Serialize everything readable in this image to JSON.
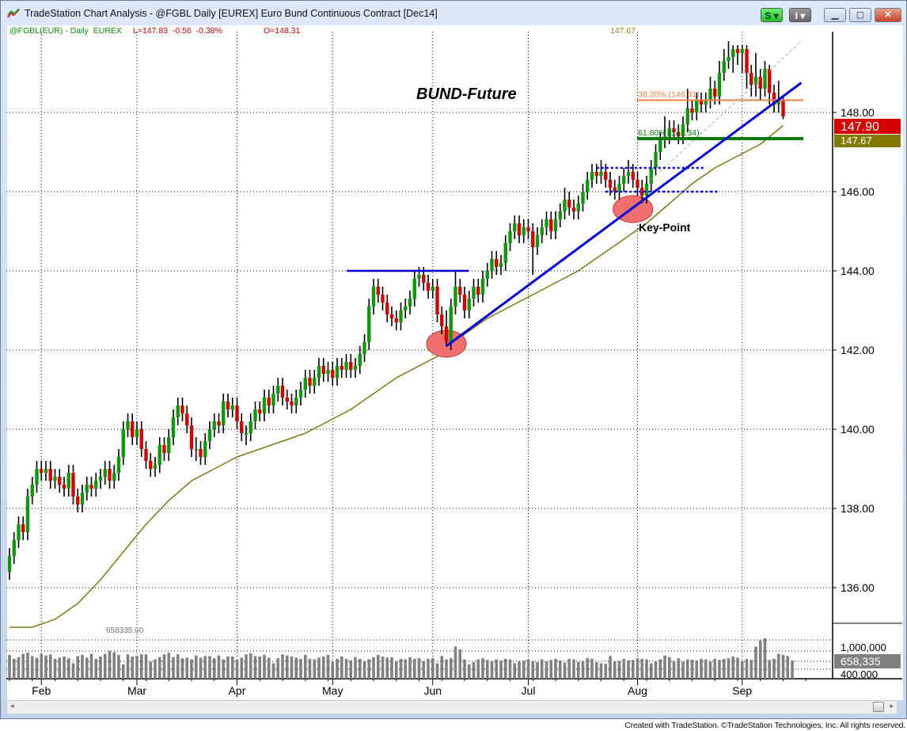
{
  "window": {
    "title": "TradeStation Chart Analysis - @FGBL Daily [EUREX] Euro Bund Continuous Contract [Dec14]",
    "buttons": {
      "s_label": "S ▾",
      "i_label": "I ▾",
      "minimize": "▁",
      "maximize": "▢",
      "close": "✕"
    }
  },
  "header": {
    "symbol": "@FGBL(EUR) - Daily  EUREX",
    "last": "L=147.83  -0.56  -0.38%",
    "open": "O=148.31",
    "ma_value": "147.67"
  },
  "colors": {
    "up": "#0a9a0a",
    "down": "#d40000",
    "ma": "#7f7a10",
    "trend": "#0000e0",
    "fib38": "#f08040",
    "fib62": "#0a7a0a",
    "ellipse": "#f07070"
  },
  "footer": "Created with TradeStation. ©TradeStation Technologies, Inc. All rights reserved.",
  "chart_data": {
    "type": "candlestick",
    "title": "BUND-Future",
    "annotation": "Key-Point",
    "yticks": [
      "136.00",
      "138.00",
      "140.00",
      "142.00",
      "144.00",
      "146.00",
      "148.00"
    ],
    "ylim": [
      134.8,
      150.2
    ],
    "x_ticks": [
      {
        "label": "Feb",
        "bar": 7
      },
      {
        "label": "Mar",
        "bar": 28
      },
      {
        "label": "Apr",
        "bar": 50
      },
      {
        "label": "May",
        "bar": 71
      },
      {
        "label": "Jun",
        "bar": 93
      },
      {
        "label": "Jul",
        "bar": 114
      },
      {
        "label": "Aug",
        "bar": 138
      },
      {
        "label": "Sep",
        "bar": 161
      }
    ],
    "last_price_label": "147.90",
    "ma_label": "147.67",
    "fib": [
      {
        "label": "38.20% (148.31)",
        "value": 148.31
      },
      {
        "label": "61.80% (147.34)",
        "value": 147.34
      }
    ],
    "resistance_line": {
      "value": 144.0,
      "from_bar": 75,
      "to_bar": 100
    },
    "trendline": {
      "from": [
        96,
        142.1
      ],
      "to": [
        174,
        148.75
      ]
    },
    "dotted_levels": [
      {
        "value": 146.6,
        "from_bar": 129,
        "to_bar": 153
      },
      {
        "value": 146.0,
        "from_bar": 131,
        "to_bar": 156
      }
    ],
    "dashed_channel": {
      "from": [
        141,
        146.3
      ],
      "to": [
        174,
        149.8
      ]
    },
    "key_points": [
      [
        96,
        142.2
      ],
      [
        137,
        145.6
      ]
    ],
    "moving_average": [
      [
        0,
        135.0
      ],
      [
        5,
        135.0
      ],
      [
        10,
        135.2
      ],
      [
        15,
        135.6
      ],
      [
        20,
        136.2
      ],
      [
        25,
        136.9
      ],
      [
        30,
        137.6
      ],
      [
        35,
        138.2
      ],
      [
        40,
        138.7
      ],
      [
        45,
        139.0
      ],
      [
        50,
        139.3
      ],
      [
        55,
        139.5
      ],
      [
        60,
        139.7
      ],
      [
        65,
        139.9
      ],
      [
        70,
        140.2
      ],
      [
        75,
        140.5
      ],
      [
        80,
        140.9
      ],
      [
        85,
        141.3
      ],
      [
        90,
        141.6
      ],
      [
        95,
        141.9
      ],
      [
        100,
        142.4
      ],
      [
        105,
        142.8
      ],
      [
        110,
        143.1
      ],
      [
        115,
        143.4
      ],
      [
        120,
        143.7
      ],
      [
        125,
        144.0
      ],
      [
        130,
        144.4
      ],
      [
        135,
        144.8
      ],
      [
        140,
        145.2
      ],
      [
        145,
        145.7
      ],
      [
        150,
        146.2
      ],
      [
        155,
        146.6
      ],
      [
        160,
        146.9
      ],
      [
        165,
        147.2
      ],
      [
        170,
        147.67
      ]
    ],
    "candles": [
      [
        136.4,
        137.0,
        136.2,
        136.8
      ],
      [
        136.8,
        137.4,
        136.6,
        137.2
      ],
      [
        137.2,
        137.8,
        137.0,
        137.6
      ],
      [
        137.6,
        137.8,
        137.2,
        137.4
      ],
      [
        137.4,
        138.5,
        137.2,
        138.3
      ],
      [
        138.3,
        138.8,
        138.1,
        138.6
      ],
      [
        138.6,
        139.2,
        138.4,
        139.0
      ],
      [
        139.0,
        139.2,
        138.7,
        138.9
      ],
      [
        138.9,
        139.2,
        138.7,
        139.0
      ],
      [
        139.0,
        139.2,
        138.5,
        138.7
      ],
      [
        138.7,
        139.0,
        138.5,
        138.8
      ],
      [
        138.8,
        139.0,
        138.4,
        138.6
      ],
      [
        138.6,
        138.8,
        138.3,
        138.5
      ],
      [
        138.5,
        139.1,
        138.3,
        138.9
      ],
      [
        138.9,
        139.1,
        138.1,
        138.3
      ],
      [
        138.3,
        138.5,
        137.9,
        138.1
      ],
      [
        138.1,
        138.6,
        137.9,
        138.4
      ],
      [
        138.4,
        138.8,
        138.2,
        138.6
      ],
      [
        138.6,
        138.8,
        138.3,
        138.5
      ],
      [
        138.5,
        138.9,
        138.3,
        138.7
      ],
      [
        138.7,
        139.0,
        138.5,
        138.8
      ],
      [
        138.8,
        139.2,
        138.6,
        139.0
      ],
      [
        139.0,
        139.2,
        138.5,
        138.7
      ],
      [
        138.7,
        139.1,
        138.5,
        138.9
      ],
      [
        138.9,
        139.5,
        138.7,
        139.3
      ],
      [
        139.3,
        140.2,
        139.1,
        140.0
      ],
      [
        140.0,
        140.4,
        139.8,
        140.2
      ],
      [
        140.2,
        140.4,
        139.6,
        139.8
      ],
      [
        139.8,
        140.2,
        139.6,
        140.0
      ],
      [
        140.0,
        140.2,
        139.3,
        139.5
      ],
      [
        139.5,
        139.7,
        139.0,
        139.2
      ],
      [
        139.2,
        139.4,
        138.8,
        139.0
      ],
      [
        139.0,
        139.3,
        138.8,
        139.1
      ],
      [
        139.1,
        139.8,
        138.9,
        139.6
      ],
      [
        139.6,
        139.8,
        139.2,
        139.4
      ],
      [
        139.4,
        140.0,
        139.2,
        139.8
      ],
      [
        139.8,
        140.5,
        139.6,
        140.3
      ],
      [
        140.3,
        140.8,
        140.1,
        140.6
      ],
      [
        140.6,
        140.8,
        140.2,
        140.4
      ],
      [
        140.4,
        140.6,
        139.9,
        140.1
      ],
      [
        140.1,
        140.3,
        139.3,
        139.5
      ],
      [
        139.5,
        139.8,
        139.2,
        139.5
      ],
      [
        139.5,
        139.7,
        139.1,
        139.3
      ],
      [
        139.3,
        139.9,
        139.1,
        139.7
      ],
      [
        139.7,
        140.2,
        139.5,
        140.0
      ],
      [
        140.0,
        140.4,
        139.8,
        140.2
      ],
      [
        140.2,
        140.4,
        139.9,
        140.1
      ],
      [
        140.1,
        140.9,
        139.9,
        140.7
      ],
      [
        140.7,
        140.9,
        140.3,
        140.5
      ],
      [
        140.5,
        140.8,
        140.3,
        140.6
      ],
      [
        140.6,
        140.8,
        140.0,
        140.2
      ],
      [
        140.2,
        140.4,
        139.7,
        139.9
      ],
      [
        139.9,
        140.1,
        139.6,
        139.9
      ],
      [
        139.9,
        140.4,
        139.7,
        140.2
      ],
      [
        140.2,
        140.7,
        140.0,
        140.5
      ],
      [
        140.5,
        140.7,
        140.2,
        140.4
      ],
      [
        140.4,
        141.0,
        140.2,
        140.8
      ],
      [
        140.8,
        141.0,
        140.4,
        140.6
      ],
      [
        140.6,
        141.1,
        140.4,
        140.9
      ],
      [
        140.9,
        141.3,
        140.7,
        141.1
      ],
      [
        141.1,
        141.3,
        140.6,
        140.8
      ],
      [
        140.8,
        141.0,
        140.5,
        140.7
      ],
      [
        140.7,
        140.9,
        140.4,
        140.6
      ],
      [
        140.6,
        141.0,
        140.4,
        140.8
      ],
      [
        140.8,
        141.2,
        140.6,
        141.0
      ],
      [
        141.0,
        141.5,
        140.8,
        141.3
      ],
      [
        141.3,
        141.5,
        140.9,
        141.1
      ],
      [
        141.1,
        141.5,
        140.9,
        141.3
      ],
      [
        141.3,
        141.8,
        141.1,
        141.6
      ],
      [
        141.6,
        141.8,
        141.2,
        141.4
      ],
      [
        141.4,
        141.7,
        141.2,
        141.5
      ],
      [
        141.5,
        141.7,
        141.1,
        141.3
      ],
      [
        141.3,
        141.8,
        141.1,
        141.6
      ],
      [
        141.6,
        141.8,
        141.3,
        141.5
      ],
      [
        141.5,
        141.9,
        141.3,
        141.7
      ],
      [
        141.7,
        141.9,
        141.3,
        141.5
      ],
      [
        141.5,
        141.8,
        141.3,
        141.6
      ],
      [
        141.6,
        142.1,
        141.4,
        141.9
      ],
      [
        141.9,
        142.4,
        141.7,
        142.2
      ],
      [
        142.2,
        143.3,
        142.0,
        143.1
      ],
      [
        143.1,
        143.8,
        142.9,
        143.6
      ],
      [
        143.6,
        143.8,
        143.2,
        143.4
      ],
      [
        143.4,
        143.6,
        143.0,
        143.2
      ],
      [
        143.2,
        143.4,
        142.7,
        142.9
      ],
      [
        142.9,
        143.1,
        142.6,
        142.8
      ],
      [
        142.8,
        143.0,
        142.5,
        142.7
      ],
      [
        142.7,
        143.2,
        142.5,
        143.0
      ],
      [
        143.0,
        143.3,
        142.8,
        143.1
      ],
      [
        143.1,
        143.5,
        142.9,
        143.3
      ],
      [
        143.3,
        144.0,
        143.1,
        143.8
      ],
      [
        143.8,
        144.1,
        143.6,
        143.9
      ],
      [
        143.9,
        144.1,
        143.5,
        143.7
      ],
      [
        143.7,
        143.9,
        143.3,
        143.5
      ],
      [
        143.5,
        143.8,
        143.3,
        143.6
      ],
      [
        143.6,
        143.8,
        142.7,
        142.9
      ],
      [
        142.9,
        143.1,
        142.4,
        142.6
      ],
      [
        142.6,
        143.0,
        142.1,
        142.2
      ],
      [
        142.2,
        143.3,
        142.0,
        143.1
      ],
      [
        143.1,
        144.0,
        142.9,
        143.6
      ],
      [
        143.6,
        143.8,
        143.2,
        143.4
      ],
      [
        143.4,
        143.6,
        142.8,
        143.0
      ],
      [
        143.0,
        143.5,
        142.8,
        143.3
      ],
      [
        143.3,
        143.8,
        143.1,
        143.6
      ],
      [
        143.6,
        143.8,
        143.2,
        143.4
      ],
      [
        143.4,
        144.0,
        143.2,
        143.8
      ],
      [
        143.8,
        144.2,
        143.6,
        144.0
      ],
      [
        144.0,
        144.5,
        143.8,
        144.3
      ],
      [
        144.3,
        144.5,
        143.9,
        144.1
      ],
      [
        144.1,
        144.4,
        143.9,
        144.2
      ],
      [
        144.2,
        144.9,
        144.0,
        144.7
      ],
      [
        144.7,
        145.2,
        144.5,
        145.0
      ],
      [
        145.0,
        145.4,
        144.8,
        145.2
      ],
      [
        145.2,
        145.4,
        144.7,
        144.9
      ],
      [
        144.9,
        145.3,
        144.7,
        145.1
      ],
      [
        145.1,
        145.3,
        144.8,
        145.0
      ],
      [
        145.0,
        145.2,
        143.9,
        144.6
      ],
      [
        144.6,
        145.1,
        144.4,
        144.9
      ],
      [
        144.9,
        145.3,
        144.7,
        145.1
      ],
      [
        145.1,
        145.5,
        144.9,
        145.3
      ],
      [
        145.3,
        145.5,
        144.8,
        145.0
      ],
      [
        145.0,
        145.5,
        144.8,
        145.3
      ],
      [
        145.3,
        145.7,
        145.1,
        145.5
      ],
      [
        145.5,
        146.1,
        145.3,
        145.8
      ],
      [
        145.8,
        146.0,
        145.4,
        145.6
      ],
      [
        145.6,
        145.8,
        145.3,
        145.5
      ],
      [
        145.5,
        145.9,
        145.3,
        145.7
      ],
      [
        145.7,
        146.2,
        145.5,
        146.0
      ],
      [
        146.0,
        146.5,
        145.8,
        146.3
      ],
      [
        146.3,
        146.7,
        146.1,
        146.5
      ],
      [
        146.5,
        146.7,
        146.2,
        146.4
      ],
      [
        146.4,
        146.8,
        146.2,
        146.5
      ],
      [
        146.5,
        146.7,
        146.1,
        146.3
      ],
      [
        146.3,
        146.5,
        145.9,
        146.1
      ],
      [
        146.1,
        146.3,
        145.8,
        146.0
      ],
      [
        146.0,
        146.4,
        145.8,
        146.2
      ],
      [
        146.2,
        146.6,
        146.0,
        146.4
      ],
      [
        146.4,
        146.8,
        146.2,
        146.5
      ],
      [
        146.5,
        146.7,
        146.1,
        146.3
      ],
      [
        146.3,
        146.5,
        145.9,
        146.1
      ],
      [
        146.1,
        146.3,
        145.7,
        145.9
      ],
      [
        145.9,
        146.4,
        145.7,
        146.2
      ],
      [
        146.2,
        146.8,
        146.0,
        146.6
      ],
      [
        146.6,
        147.2,
        146.4,
        147.0
      ],
      [
        147.0,
        147.5,
        146.8,
        147.3
      ],
      [
        147.3,
        147.9,
        147.1,
        147.4
      ],
      [
        147.4,
        147.8,
        147.2,
        147.6
      ],
      [
        147.6,
        147.8,
        147.3,
        147.5
      ],
      [
        147.5,
        147.7,
        147.2,
        147.4
      ],
      [
        147.4,
        147.9,
        147.2,
        147.7
      ],
      [
        147.7,
        148.6,
        147.5,
        148.1
      ],
      [
        148.1,
        148.3,
        147.8,
        148.0
      ],
      [
        148.0,
        148.5,
        147.8,
        148.3
      ],
      [
        148.3,
        148.5,
        148.0,
        148.2
      ],
      [
        148.2,
        148.5,
        148.0,
        148.3
      ],
      [
        148.3,
        148.9,
        148.1,
        148.6
      ],
      [
        148.6,
        148.8,
        148.2,
        148.4
      ],
      [
        148.4,
        149.3,
        148.2,
        149.0
      ],
      [
        149.0,
        149.6,
        148.8,
        149.3
      ],
      [
        149.3,
        149.8,
        149.1,
        149.4
      ],
      [
        149.4,
        149.7,
        149.0,
        149.6
      ],
      [
        149.6,
        149.7,
        149.2,
        149.5
      ],
      [
        149.5,
        149.7,
        149.0,
        149.6
      ],
      [
        149.6,
        149.7,
        148.6,
        149.0
      ],
      [
        149.0,
        149.2,
        148.4,
        148.7
      ],
      [
        148.7,
        149.5,
        148.4,
        148.9
      ],
      [
        148.9,
        149.1,
        148.3,
        148.6
      ],
      [
        148.6,
        149.3,
        148.4,
        149.1
      ],
      [
        149.1,
        149.2,
        148.2,
        148.5
      ],
      [
        148.5,
        148.7,
        148.0,
        148.2
      ],
      [
        148.2,
        148.8,
        148.0,
        148.3
      ],
      [
        148.31,
        148.4,
        147.83,
        147.9
      ]
    ],
    "volume": {
      "yticks": [
        "1,000,000",
        "400,000"
      ],
      "last_label": "658,335",
      "max_label": "658335.00",
      "values": [
        860000,
        720000,
        780000,
        900000,
        940000,
        820000,
        760000,
        900000,
        840000,
        880000,
        720000,
        760000,
        800000,
        740000,
        560000,
        820000,
        860000,
        760000,
        900000,
        720000,
        800000,
        900000,
        1000000,
        960000,
        860000,
        520000,
        880000,
        800000,
        820000,
        880000,
        880000,
        620000,
        700000,
        780000,
        880000,
        940000,
        780000,
        880000,
        740000,
        760000,
        700000,
        840000,
        760000,
        820000,
        820000,
        740000,
        840000,
        700000,
        800000,
        800000,
        680000,
        760000,
        880000,
        920000,
        820000,
        800000,
        860000,
        760000,
        560000,
        740000,
        880000,
        840000,
        800000,
        760000,
        720000,
        860000,
        720000,
        700000,
        760000,
        800000,
        860000,
        620000,
        720000,
        800000,
        720000,
        660000,
        780000,
        720000,
        640000,
        700000,
        780000,
        860000,
        800000,
        760000,
        780000,
        640000,
        720000,
        700000,
        780000,
        720000,
        740000,
        640000,
        720000,
        740000,
        560000,
        820000,
        700000,
        740000,
        1160000,
        1060000,
        700000,
        520000,
        600000,
        700000,
        740000,
        680000,
        640000,
        700000,
        660000,
        720000,
        700000,
        560000,
        620000,
        660000,
        700000,
        640000,
        600000,
        700000,
        620000,
        680000,
        720000,
        660000,
        580000,
        720000,
        700000,
        600000,
        640000,
        740000,
        720000,
        600000,
        560000,
        540000,
        820000,
        620000,
        640000,
        720000,
        660000,
        680000,
        740000,
        720000,
        700000,
        560000,
        620000,
        700000,
        840000,
        780000,
        640000,
        740000,
        620000,
        700000,
        680000,
        660000,
        720000,
        700000,
        620000,
        720000,
        680000,
        720000,
        740000,
        800000,
        760000,
        640000,
        720000,
        680000,
        1160000,
        1380000,
        1460000,
        680000,
        720000,
        900000,
        860000,
        820000,
        658335
      ]
    }
  }
}
